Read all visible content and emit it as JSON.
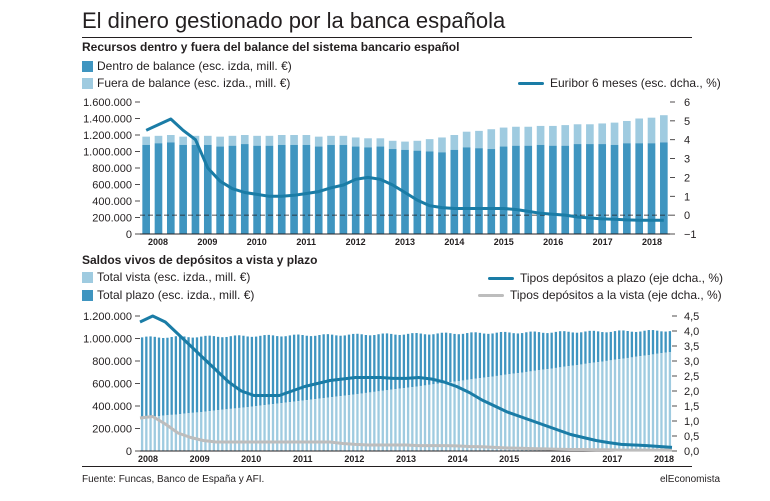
{
  "title": "El dinero gestionado por la banca española",
  "subtitle": "Recursos dentro y fuera del balance del sistema bancario español",
  "section2_title": "Saldos vivos de depósitos a vista y plazo",
  "source": "Fuente: Funcas, Banco de España y AFI.",
  "brand": "elEconomista",
  "colors": {
    "dark_bar": "#3f95c0",
    "light_bar": "#9fcbe0",
    "line": "#1a7ca6",
    "gray_line": "#bdbdbd",
    "vista_light": "#c6dfec"
  },
  "chart_data": [
    {
      "type": "bar",
      "legend": {
        "dentro": "Dentro de balance (esc. izda, mill. €)",
        "fuera": "Fuera de balance (esc. izda., mill. €)",
        "euribor": "Euribor 6 meses (esc. dcha., %)"
      },
      "years": [
        "2008",
        "2009",
        "2010",
        "2011",
        "2012",
        "2013",
        "2014",
        "2015",
        "2016",
        "2017",
        "2018"
      ],
      "left_axis": {
        "ylim": [
          0,
          1600000
        ],
        "ticks": [
          "0",
          "200.000",
          "400.000",
          "600.000",
          "800.000",
          "1.000.000",
          "1.200.000",
          "1.400.000",
          "1.600.000"
        ]
      },
      "right_axis": {
        "ylim": [
          -1,
          6
        ],
        "ticks": [
          "−1",
          "0",
          "1",
          "2",
          "3",
          "4",
          "5",
          "6"
        ]
      },
      "dentro_values": [
        1080000,
        1100000,
        1110000,
        1080000,
        1080000,
        1080000,
        1060000,
        1070000,
        1090000,
        1070000,
        1070000,
        1080000,
        1080000,
        1080000,
        1060000,
        1080000,
        1080000,
        1060000,
        1050000,
        1060000,
        1030000,
        1020000,
        1010000,
        1000000,
        990000,
        1020000,
        1050000,
        1040000,
        1030000,
        1060000,
        1070000,
        1070000,
        1080000,
        1070000,
        1070000,
        1090000,
        1090000,
        1090000,
        1080000,
        1100000,
        1100000,
        1100000,
        1110000
      ],
      "total_values": [
        1180000,
        1190000,
        1200000,
        1180000,
        1190000,
        1190000,
        1180000,
        1190000,
        1200000,
        1190000,
        1190000,
        1200000,
        1200000,
        1200000,
        1180000,
        1190000,
        1190000,
        1170000,
        1160000,
        1160000,
        1130000,
        1120000,
        1130000,
        1150000,
        1170000,
        1200000,
        1240000,
        1250000,
        1270000,
        1290000,
        1300000,
        1300000,
        1310000,
        1310000,
        1320000,
        1330000,
        1330000,
        1340000,
        1350000,
        1370000,
        1400000,
        1410000,
        1440000
      ],
      "euribor": [
        4.5,
        4.8,
        5.1,
        4.5,
        4.0,
        2.5,
        1.8,
        1.4,
        1.2,
        1.1,
        1.0,
        1.0,
        1.05,
        1.15,
        1.25,
        1.45,
        1.6,
        1.9,
        2.0,
        1.9,
        1.6,
        1.2,
        0.8,
        0.5,
        0.4,
        0.35,
        0.35,
        0.35,
        0.35,
        0.35,
        0.3,
        0.2,
        0.1,
        0.05,
        0.0,
        -0.1,
        -0.15,
        -0.2,
        -0.22,
        -0.25,
        -0.27,
        -0.27,
        -0.27
      ]
    },
    {
      "type": "bar",
      "legend": {
        "vista": "Total vista (esc. izda., mill. €)",
        "plazo": "Total plazo (esc. izda., mill. €)",
        "plazo_rate": "Tipos depósitos a plazo (eje dcha., %)",
        "vista_rate": "Tipos depósitos a la vista (eje dcha., %)"
      },
      "years": [
        "2008",
        "2009",
        "2010",
        "2011",
        "2012",
        "2013",
        "2014",
        "2015",
        "2016",
        "2017",
        "2018"
      ],
      "left_axis": {
        "ylim": [
          0,
          1200000
        ],
        "ticks": [
          "0",
          "200.000",
          "400.000",
          "600.000",
          "800.000",
          "1.000.000",
          "1.200.000"
        ]
      },
      "right_axis": {
        "ylim": [
          0,
          4.5
        ],
        "ticks": [
          "0,0",
          "0,5",
          "1,0",
          "1,5",
          "2,0",
          "2,5",
          "3,0",
          "3,5",
          "4,0",
          "4,5"
        ]
      },
      "total_start": 1010000,
      "total_end": 1070000,
      "vista_start": 300000,
      "vista_end": 880000,
      "plazo_rate": [
        4.3,
        4.5,
        4.3,
        3.9,
        3.5,
        3.1,
        2.7,
        2.3,
        2.0,
        1.85,
        1.85,
        1.85,
        2.0,
        2.15,
        2.25,
        2.35,
        2.4,
        2.45,
        2.45,
        2.45,
        2.42,
        2.42,
        2.45,
        2.4,
        2.3,
        2.15,
        1.95,
        1.7,
        1.5,
        1.3,
        1.15,
        1.0,
        0.85,
        0.7,
        0.55,
        0.45,
        0.35,
        0.28,
        0.22,
        0.2,
        0.18,
        0.15,
        0.12
      ],
      "vista_rate": [
        1.1,
        1.15,
        0.9,
        0.6,
        0.45,
        0.35,
        0.3,
        0.3,
        0.3,
        0.3,
        0.3,
        0.3,
        0.3,
        0.3,
        0.3,
        0.3,
        0.25,
        0.22,
        0.2,
        0.2,
        0.2,
        0.2,
        0.18,
        0.18,
        0.18,
        0.17,
        0.15,
        0.14,
        0.12,
        0.1,
        0.09,
        0.08,
        0.07,
        0.06,
        0.05,
        0.05,
        0.04,
        0.04,
        0.03,
        0.03,
        0.03,
        0.03,
        0.03
      ]
    }
  ]
}
